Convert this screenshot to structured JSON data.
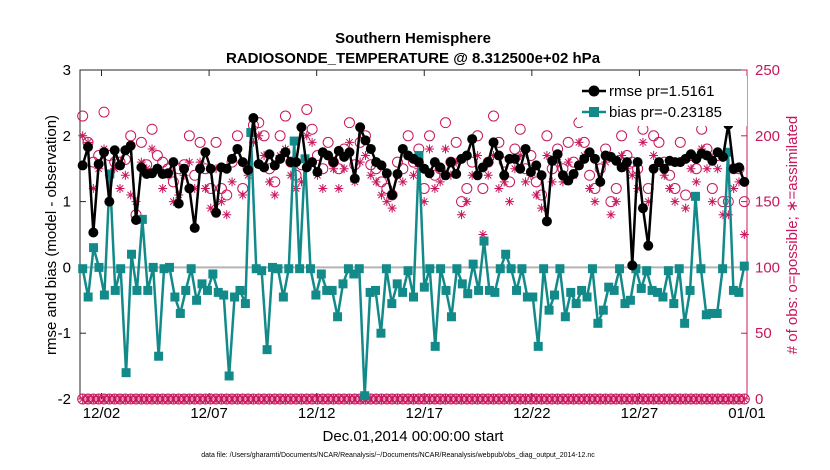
{
  "chart_data": {
    "type": "line",
    "title": "Southern Hemisphere",
    "subtitle": "RADIOSONDE_TEMPERATURE @ 8.312500e+02 hPa",
    "xlabel": "Dec.01,2014 00:00:00 start",
    "ylabel_left": "rmse and bias (model - observation)",
    "ylabel_right": "# of obs: o=possible; ∗=assimilated",
    "footnote": "data file: /Users/gharamti/Documents/NCAR/Reanalysis/~/Documents/NCAR/Reanalysis/webpub/obs_diag_output_2014-12.nc",
    "xlim": [
      0,
      31
    ],
    "ylim_left": [
      -2,
      3
    ],
    "ylim_right": [
      0,
      250
    ],
    "x_ticks": [
      {
        "pos": 1,
        "label": "12/02"
      },
      {
        "pos": 6,
        "label": "12/07"
      },
      {
        "pos": 11,
        "label": "12/12"
      },
      {
        "pos": 16,
        "label": "12/17"
      },
      {
        "pos": 21,
        "label": "12/22"
      },
      {
        "pos": 26,
        "label": "12/27"
      },
      {
        "pos": 31,
        "label": "01/01"
      }
    ],
    "yticks_left": [
      "-2",
      "-1",
      "0",
      "1",
      "2",
      "3"
    ],
    "yticks_right": [
      "0",
      "50",
      "100",
      "150",
      "200",
      "250"
    ],
    "zero_line": 0,
    "legend": {
      "position": "top-right",
      "entries": [
        "rmse pr=1.5161",
        "bias pr=-0.23185"
      ]
    },
    "colors": {
      "rmse": "#000000",
      "bias": "#138a8a",
      "obs": "#c8175d",
      "zero": "#b4b4b4"
    },
    "series": [
      {
        "name": "rmse pr=1.5161",
        "axis": "left",
        "marker": "circle",
        "values": [
          1.55,
          1.83,
          0.53,
          1.57,
          1.75,
          1.0,
          1.78,
          1.55,
          1.78,
          1.85,
          0.72,
          1.52,
          1.42,
          1.43,
          1.5,
          1.42,
          1.43,
          1.6,
          0.97,
          1.5,
          1.2,
          0.6,
          1.5,
          1.75,
          1.5,
          0.83,
          1.52,
          1.5,
          1.65,
          1.8,
          1.6,
          1.48,
          2.27,
          1.57,
          1.52,
          1.72,
          1.55,
          1.65,
          1.75,
          1.6,
          1.6,
          2.13,
          1.52,
          1.6,
          1.45,
          1.75,
          1.7,
          1.6,
          1.77,
          1.68,
          1.75,
          1.35,
          2.13,
          1.93,
          1.8,
          1.6,
          1.55,
          1.43,
          1.1,
          1.42,
          1.8,
          1.7,
          1.65,
          1.6,
          1.5,
          1.43,
          1.6,
          1.52,
          1.4,
          1.6,
          1.42,
          1.65,
          1.7,
          1.95,
          1.4,
          1.52,
          1.6,
          1.9,
          1.7,
          1.4,
          1.65,
          1.65,
          1.5,
          1.8,
          1.45,
          1.55,
          1.4,
          0.7,
          1.62,
          1.72,
          1.4,
          1.32,
          1.42,
          1.55,
          1.65,
          1.75,
          1.65,
          1.3,
          1.7,
          1.68,
          1.62,
          1.52,
          1.6,
          0.03,
          1.6,
          0.9,
          0.33,
          1.5,
          1.6,
          1.5,
          1.62,
          1.6,
          1.6,
          1.65,
          1.72,
          1.65,
          1.73,
          1.7,
          1.62,
          1.75,
          1.68,
          2.17,
          1.5,
          1.52,
          1.3
        ]
      },
      {
        "name": "bias pr=-0.23185",
        "axis": "left",
        "marker": "square",
        "values": [
          -0.02,
          -0.45,
          0.3,
          0.0,
          -0.42,
          1.42,
          -0.35,
          -0.02,
          -1.6,
          0.2,
          -0.35,
          0.73,
          -0.35,
          0.0,
          -1.35,
          -0.02,
          0.0,
          -0.45,
          -0.7,
          -0.35,
          -0.02,
          -0.5,
          -0.25,
          -0.35,
          -0.1,
          -0.38,
          -0.42,
          -1.65,
          -0.45,
          -0.35,
          -0.55,
          2.05,
          -0.02,
          -0.05,
          -1.25,
          0.0,
          -0.02,
          -0.45,
          -0.02,
          1.92,
          -0.02,
          1.65,
          -0.02,
          -0.42,
          -0.1,
          -0.35,
          -0.35,
          -0.75,
          -0.25,
          -0.02,
          -0.1,
          -0.02,
          -1.95,
          -0.38,
          -0.35,
          -1.0,
          -0.02,
          -0.55,
          -0.25,
          -0.38,
          -0.05,
          -0.45,
          1.7,
          -0.3,
          -0.02,
          -1.2,
          -0.02,
          -0.35,
          -0.75,
          -0.02,
          -0.25,
          -0.4,
          0.05,
          -0.35,
          0.4,
          -0.35,
          -0.38,
          -0.02,
          0.2,
          -0.02,
          -0.35,
          -0.02,
          -0.45,
          -0.45,
          -1.2,
          -0.02,
          -0.65,
          -0.42,
          -0.02,
          -0.75,
          -0.38,
          -0.55,
          -0.35,
          -0.45,
          -0.02,
          -0.85,
          -0.65,
          -0.3,
          -0.35,
          -0.02,
          -0.55,
          -0.5,
          -0.02,
          -0.32,
          -0.05,
          -0.35,
          -0.38,
          -0.45,
          -0.05,
          -0.55,
          -0.02,
          -0.85,
          -0.35,
          1.08,
          -0.02,
          -0.72,
          -0.7,
          -0.7,
          -0.02,
          1.75,
          -0.35,
          -0.38,
          0.02
        ]
      },
      {
        "name": "possible",
        "axis": "right",
        "marker": "open-circle",
        "values": [
          215,
          195,
          180,
          185,
          218,
          185,
          180,
          180,
          182,
          200,
          140,
          195,
          178,
          205,
          185,
          180,
          175,
          165,
          175,
          178,
          200,
          170,
          195,
          175,
          160,
          195,
          160,
          155,
          180,
          200,
          160,
          175,
          208,
          210,
          200,
          175,
          165,
          200,
          215,
          180,
          170,
          178,
          220,
          205,
          185,
          175,
          195,
          180,
          175,
          190,
          210,
          178,
          195,
          200,
          178,
          175,
          165,
          160,
          155,
          180,
          175,
          200,
          180,
          190,
          160,
          200,
          170,
          175,
          210,
          180,
          195,
          150,
          160,
          180,
          200,
          160,
          180,
          215,
          195,
          180,
          165,
          190,
          205,
          175,
          185,
          165,
          155,
          200,
          175,
          190,
          175,
          195,
          180,
          210,
          195,
          170,
          160,
          175,
          190,
          150,
          160,
          200,
          185,
          180,
          175,
          205,
          160,
          200,
          195,
          180,
          170,
          160,
          195,
          155,
          185,
          175,
          205,
          190,
          160,
          185,
          150,
          150,
          175,
          175,
          150
        ]
      },
      {
        "name": "assimilated",
        "axis": "right",
        "marker": "star",
        "values": [
          200,
          195,
          160,
          175,
          190,
          170,
          175,
          160,
          170,
          155,
          150,
          180,
          175,
          190,
          175,
          160,
          170,
          150,
          155,
          170,
          180,
          160,
          180,
          160,
          145,
          175,
          150,
          140,
          165,
          190,
          155,
          170,
          195,
          200,
          185,
          165,
          155,
          185,
          190,
          170,
          160,
          165,
          200,
          195,
          170,
          160,
          185,
          175,
          160,
          175,
          195,
          165,
          180,
          185,
          170,
          165,
          155,
          150,
          145,
          170,
          165,
          185,
          170,
          175,
          150,
          190,
          160,
          165,
          190,
          170,
          180,
          140,
          150,
          170,
          185,
          125,
          170,
          185,
          160,
          165,
          150,
          175,
          185,
          165,
          170,
          155,
          145,
          185,
          165,
          180,
          165,
          180,
          170,
          195,
          185,
          160,
          150,
          165,
          180,
          140,
          150,
          185,
          175,
          170,
          160,
          195,
          150,
          185,
          180,
          170,
          160,
          150,
          180,
          145,
          175,
          165,
          190,
          175,
          150,
          175,
          140,
          140,
          160,
          165,
          125
        ]
      },
      {
        "name": "possible_baseline",
        "axis": "right",
        "marker": "open-circle",
        "values": [
          0,
          0,
          0,
          0,
          0,
          0,
          0,
          0,
          0,
          0,
          0,
          0,
          0,
          0,
          0,
          0,
          0,
          0,
          0,
          0,
          0,
          0,
          0,
          0,
          0,
          0,
          0,
          0,
          0,
          0,
          0,
          0,
          0,
          0,
          0,
          0,
          0,
          0,
          0,
          0,
          0,
          0,
          0,
          0,
          0,
          0,
          0,
          0,
          0,
          0,
          0,
          0,
          0,
          0,
          0,
          0,
          0,
          0,
          0,
          0,
          0,
          0,
          0,
          0,
          0,
          0,
          0,
          0,
          0,
          0,
          0,
          0,
          0,
          0,
          0,
          0,
          0,
          0,
          0,
          0,
          0,
          0,
          0,
          0,
          0,
          0,
          0,
          0,
          0,
          0,
          0,
          0,
          0,
          0,
          0,
          0,
          0,
          0,
          0,
          0,
          0,
          0,
          0,
          0,
          0,
          0,
          0,
          0,
          0,
          0,
          0,
          0,
          0,
          0,
          0,
          0,
          0,
          0,
          0,
          0,
          0,
          0,
          0,
          0,
          0
        ]
      }
    ]
  }
}
